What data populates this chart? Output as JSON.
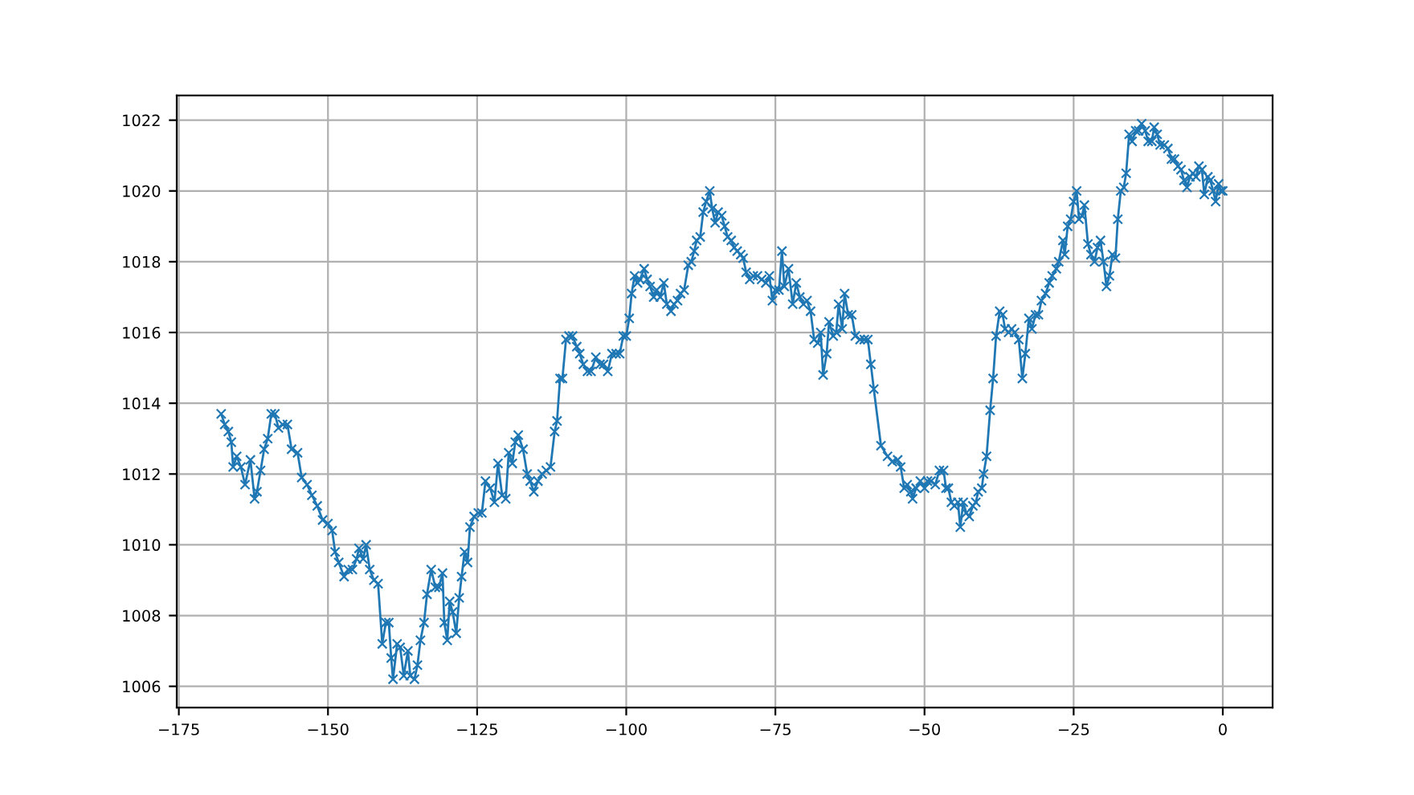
{
  "chart_data": {
    "type": "line",
    "marker": "cross",
    "grid": true,
    "xlim": [
      -175.35,
      8.35
    ],
    "ylim": [
      1005.4,
      1022.7
    ],
    "xticks": [
      {
        "value": -175,
        "label": "−175"
      },
      {
        "value": -150,
        "label": "−150"
      },
      {
        "value": -125,
        "label": "−125"
      },
      {
        "value": -100,
        "label": "−100"
      },
      {
        "value": -75,
        "label": "−75"
      },
      {
        "value": -50,
        "label": "−50"
      },
      {
        "value": -25,
        "label": "−25"
      },
      0
    ],
    "yticks": [
      1006,
      1008,
      1010,
      1012,
      1014,
      1016,
      1018,
      1020,
      1022
    ],
    "series": [
      {
        "color": "#1f77b4",
        "x": [
          -167.9,
          -167.3,
          -166.7,
          -166.2,
          -165.9,
          -165.3,
          -164.6,
          -163.9,
          -163.0,
          -162.3,
          -161.9,
          -161.3,
          -160.7,
          -160.1,
          -159.5,
          -158.9,
          -158.3,
          -157.6,
          -156.8,
          -156.1,
          -155.1,
          -154.4,
          -153.5,
          -152.7,
          -151.8,
          -150.9,
          -150.0,
          -149.3,
          -148.8,
          -148.2,
          -147.3,
          -146.6,
          -145.9,
          -145.2,
          -144.8,
          -144.1,
          -143.6,
          -143.0,
          -142.3,
          -141.6,
          -140.9,
          -140.3,
          -139.8,
          -139.4,
          -139.1,
          -138.4,
          -137.9,
          -137.3,
          -136.6,
          -136.2,
          -135.5,
          -135.0,
          -134.5,
          -133.9,
          -133.4,
          -132.7,
          -132.0,
          -131.4,
          -130.8,
          -130.5,
          -130.0,
          -129.6,
          -129.1,
          -128.5,
          -128.0,
          -127.6,
          -127.1,
          -126.6,
          -126.2,
          -125.5,
          -124.8,
          -124.2,
          -123.6,
          -122.8,
          -122.1,
          -121.5,
          -120.8,
          -120.2,
          -119.7,
          -119.1,
          -118.6,
          -118.1,
          -117.3,
          -116.6,
          -116.1,
          -115.5,
          -114.8,
          -114.1,
          -113.4,
          -112.7,
          -112.0,
          -111.6,
          -111.1,
          -110.7,
          -110.1,
          -109.6,
          -109.0,
          -108.3,
          -107.8,
          -107.2,
          -106.5,
          -105.9,
          -105.1,
          -104.4,
          -103.8,
          -103.1,
          -102.4,
          -101.7,
          -101.1,
          -100.5,
          -100.0,
          -99.5,
          -99.1,
          -98.6,
          -98.1,
          -97.7,
          -97.0,
          -96.5,
          -96.0,
          -95.4,
          -94.9,
          -94.3,
          -93.7,
          -93.2,
          -92.5,
          -92.0,
          -91.4,
          -90.9,
          -90.3,
          -89.6,
          -89.1,
          -88.6,
          -88.2,
          -87.6,
          -87.1,
          -86.6,
          -86.0,
          -85.6,
          -85.1,
          -84.6,
          -84.0,
          -83.5,
          -83.0,
          -82.4,
          -81.9,
          -81.4,
          -80.8,
          -80.4,
          -79.9,
          -79.3,
          -78.7,
          -78.0,
          -77.3,
          -76.6,
          -76.0,
          -75.5,
          -75.0,
          -74.4,
          -73.9,
          -73.5,
          -72.8,
          -72.1,
          -71.5,
          -70.9,
          -70.3,
          -69.7,
          -69.1,
          -68.5,
          -67.9,
          -67.4,
          -67.0,
          -66.4,
          -66.0,
          -65.3,
          -64.8,
          -64.4,
          -63.8,
          -63.4,
          -62.8,
          -62.2,
          -61.6,
          -60.8,
          -60.1,
          -59.5,
          -59.0,
          -58.5,
          -57.3,
          -56.2,
          -55.4,
          -54.5,
          -54.0,
          -53.4,
          -52.9,
          -52.3,
          -52.0,
          -51.4,
          -50.7,
          -50.0,
          -49.5,
          -48.9,
          -48.2,
          -47.5,
          -46.8,
          -46.4,
          -46.0,
          -45.5,
          -45.0,
          -44.4,
          -44.0,
          -43.5,
          -43.0,
          -42.5,
          -41.9,
          -41.4,
          -41.0,
          -40.4,
          -40.1,
          -39.6,
          -39.0,
          -38.5,
          -38.0,
          -37.4,
          -36.9,
          -36.5,
          -35.9,
          -35.4,
          -34.9,
          -34.2,
          -33.6,
          -33.1,
          -32.5,
          -32.0,
          -31.4,
          -30.9,
          -30.4,
          -29.7,
          -29.1,
          -28.6,
          -27.9,
          -27.5,
          -26.8,
          -26.5,
          -26.0,
          -25.5,
          -25.0,
          -24.5,
          -24.1,
          -23.6,
          -23.2,
          -22.6,
          -22.1,
          -21.5,
          -21.0,
          -20.5,
          -20.0,
          -19.5,
          -19.0,
          -18.5,
          -18.0,
          -17.6,
          -17.1,
          -16.6,
          -16.2,
          -15.7,
          -15.2,
          -14.6,
          -14.1,
          -13.6,
          -13.0,
          -12.5,
          -11.9,
          -11.5,
          -11.0,
          -10.5,
          -9.8,
          -9.2,
          -8.6,
          -8.1,
          -7.5,
          -7.0,
          -6.5,
          -6.0,
          -5.5,
          -5.0,
          -4.5,
          -4.0,
          -3.5,
          -3.1,
          -2.5,
          -2.1,
          -1.6,
          -1.2,
          -0.7,
          -0.3,
          0
        ],
        "values": [
          1013.7,
          1013.4,
          1013.2,
          1012.9,
          1012.2,
          1012.5,
          1012.2,
          1011.7,
          1012.4,
          1011.3,
          1011.5,
          1012.1,
          1012.7,
          1013.0,
          1013.7,
          1013.7,
          1013.3,
          1013.4,
          1013.4,
          1012.7,
          1012.6,
          1011.9,
          1011.7,
          1011.4,
          1011.1,
          1010.7,
          1010.6,
          1010.4,
          1009.8,
          1009.5,
          1009.1,
          1009.3,
          1009.3,
          1009.6,
          1009.9,
          1009.6,
          1010.0,
          1009.3,
          1009.0,
          1008.9,
          1007.2,
          1007.8,
          1007.8,
          1006.8,
          1006.2,
          1007.2,
          1007.1,
          1006.3,
          1007.0,
          1006.3,
          1006.2,
          1006.6,
          1007.3,
          1007.8,
          1008.6,
          1009.3,
          1008.8,
          1008.8,
          1009.2,
          1007.8,
          1007.3,
          1008.4,
          1008.1,
          1007.5,
          1008.5,
          1009.1,
          1009.8,
          1009.5,
          1010.5,
          1010.8,
          1010.9,
          1010.9,
          1011.8,
          1011.6,
          1011.2,
          1012.3,
          1011.4,
          1011.3,
          1012.6,
          1012.3,
          1012.9,
          1013.1,
          1012.7,
          1012.0,
          1011.8,
          1011.5,
          1011.8,
          1012.0,
          1012.1,
          1012.2,
          1013.2,
          1013.5,
          1014.7,
          1014.7,
          1015.8,
          1015.9,
          1015.9,
          1015.6,
          1015.4,
          1015.1,
          1014.9,
          1014.9,
          1015.3,
          1015.1,
          1015.1,
          1014.9,
          1015.4,
          1015.4,
          1015.4,
          1015.9,
          1015.9,
          1016.4,
          1017.1,
          1017.6,
          1017.4,
          1017.5,
          1017.8,
          1017.5,
          1017.3,
          1017.0,
          1017.2,
          1017.0,
          1017.4,
          1016.8,
          1016.6,
          1016.8,
          1016.9,
          1017.1,
          1017.2,
          1017.9,
          1018.0,
          1018.3,
          1018.6,
          1018.7,
          1019.4,
          1019.7,
          1020.0,
          1019.5,
          1019.1,
          1019.4,
          1019.3,
          1019.0,
          1018.7,
          1018.6,
          1018.4,
          1018.3,
          1018.2,
          1018.1,
          1017.7,
          1017.5,
          1017.6,
          1017.6,
          1017.5,
          1017.4,
          1017.6,
          1016.9,
          1017.2,
          1017.2,
          1018.3,
          1017.3,
          1017.8,
          1016.8,
          1017.4,
          1017.0,
          1016.8,
          1016.9,
          1016.6,
          1015.8,
          1015.7,
          1016.0,
          1014.8,
          1015.4,
          1016.3,
          1015.9,
          1016.0,
          1016.8,
          1016.1,
          1017.1,
          1016.5,
          1016.5,
          1015.9,
          1015.8,
          1015.8,
          1015.8,
          1015.1,
          1014.4,
          1012.8,
          1012.5,
          1012.35,
          1012.4,
          1012.2,
          1011.6,
          1011.7,
          1011.5,
          1011.3,
          1011.6,
          1011.8,
          1011.6,
          1011.8,
          1011.8,
          1011.7,
          1012.1,
          1012.1,
          1011.6,
          1011.6,
          1011.2,
          1011.1,
          1011.2,
          1010.5,
          1011.2,
          1010.9,
          1010.8,
          1011.1,
          1011.2,
          1011.5,
          1011.6,
          1012.0,
          1012.5,
          1013.8,
          1014.7,
          1015.9,
          1016.6,
          1016.5,
          1016.1,
          1016.0,
          1016.1,
          1016.0,
          1015.8,
          1014.7,
          1015.4,
          1016.4,
          1016.1,
          1016.5,
          1016.5,
          1016.9,
          1017.1,
          1017.4,
          1017.6,
          1017.8,
          1018.0,
          1018.6,
          1018.2,
          1019.0,
          1019.2,
          1019.7,
          1020.0,
          1019.2,
          1019.3,
          1019.6,
          1018.5,
          1018.2,
          1018.0,
          1018.4,
          1018.6,
          1018.0,
          1017.3,
          1017.6,
          1018.2,
          1018.1,
          1019.2,
          1020.0,
          1020.1,
          1020.5,
          1021.6,
          1021.4,
          1021.7,
          1021.7,
          1021.9,
          1021.7,
          1021.4,
          1021.4,
          1021.8,
          1021.6,
          1021.3,
          1021.3,
          1021.2,
          1020.9,
          1020.9,
          1020.7,
          1020.6,
          1020.3,
          1020.1,
          1020.4,
          1020.5,
          1020.4,
          1020.7,
          1020.6,
          1019.9,
          1020.4,
          1020.3,
          1020.0,
          1019.7,
          1020.2,
          1020.0,
          1020.0
        ]
      }
    ]
  }
}
